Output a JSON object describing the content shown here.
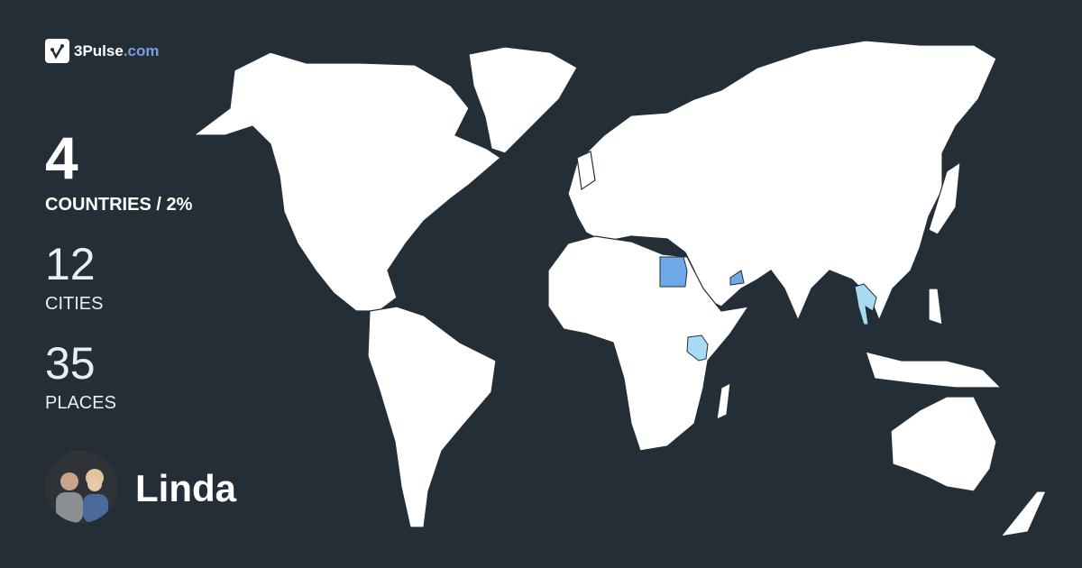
{
  "brand": {
    "name": "3Pulse",
    "tld": ".com",
    "icon": "check-pulse-icon"
  },
  "stats": {
    "countries_value": "4",
    "countries_label": "COUNTRIES / 2%",
    "cities_value": "12",
    "cities_label": "CITIES",
    "places_value": "35",
    "places_label": "PLACES"
  },
  "user": {
    "name": "Linda"
  },
  "map": {
    "visited_countries": [
      "Egypt",
      "United Arab Emirates",
      "Kenya",
      "Thailand"
    ],
    "colors": {
      "background": "#242e37",
      "land": "#ffffff",
      "visited_strong": "#6fa8e8",
      "visited_light": "#a9dcf2"
    }
  }
}
